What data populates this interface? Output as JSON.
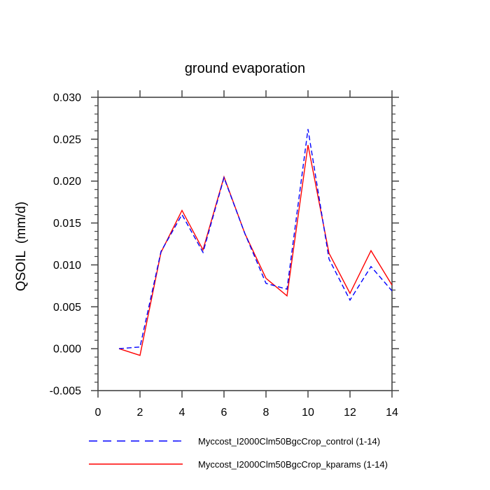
{
  "title": "ground evaporation",
  "ylabel": "QSOIL  (mm/d)",
  "chart_data": {
    "type": "line",
    "x": [
      1,
      2,
      3,
      4,
      5,
      6,
      7,
      8,
      9,
      10,
      11,
      12,
      13,
      14
    ],
    "series": [
      {
        "name": "Myccost_I2000Clm50BgcCrop_control (1-14)",
        "color": "#0000ff",
        "style": "dashed",
        "values": [
          0.0,
          0.0002,
          0.0116,
          0.016,
          0.0115,
          0.0204,
          0.0137,
          0.0078,
          0.0071,
          0.0262,
          0.0107,
          0.0058,
          0.0098,
          0.0069
        ]
      },
      {
        "name": "Myccost_I2000Clm50BgcCrop_kparams (1-14)",
        "color": "#ff0000",
        "style": "solid",
        "values": [
          0.0,
          -0.0008,
          0.0115,
          0.0165,
          0.0118,
          0.0205,
          0.0137,
          0.0084,
          0.0063,
          0.0243,
          0.0114,
          0.0066,
          0.0117,
          0.0076
        ]
      }
    ],
    "xlim": [
      0,
      14
    ],
    "ylim": [
      -0.005,
      0.03
    ],
    "x_ticks": [
      0,
      2,
      4,
      6,
      8,
      10,
      12,
      14
    ],
    "x_tick_labels": [
      "0",
      "2",
      "4",
      "6",
      "8",
      "10",
      "12",
      "14"
    ],
    "y_major_ticks": [
      -0.005,
      0.0,
      0.005,
      0.01,
      0.015,
      0.02,
      0.025,
      0.03
    ],
    "y_tick_labels": [
      "-0.005",
      "0.000",
      "0.005",
      "0.010",
      "0.015",
      "0.020",
      "0.025",
      "0.030"
    ],
    "y_minor_step": 0.001,
    "grid": false,
    "legend_position": "bottom-left",
    "axis_color": "#444444",
    "text_color": "#000000"
  }
}
